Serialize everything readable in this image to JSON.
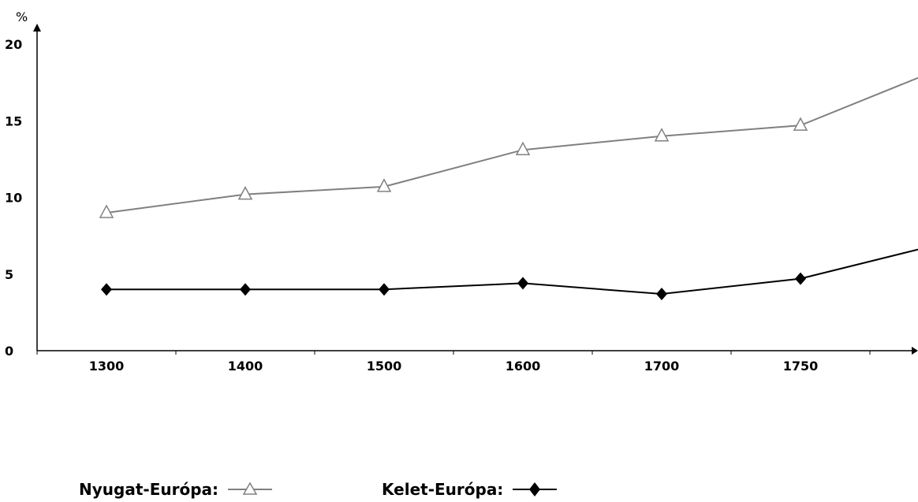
{
  "chart_data": {
    "type": "line",
    "title": "",
    "xlabel": "",
    "ylabel": "%",
    "categories": [
      "1300",
      "1400",
      "1500",
      "1600",
      "1700",
      "1750"
    ],
    "ylim": [
      0,
      20
    ],
    "yticks": [
      0,
      5,
      10,
      15,
      20
    ],
    "grid": false,
    "legend_position": "bottom",
    "series": [
      {
        "name": "Nyugat-Európa:",
        "values": [
          9.0,
          10.2,
          10.7,
          13.1,
          14.0,
          14.7
        ],
        "continues_past_last": 17.8,
        "marker": "open-triangle",
        "color": "#808080"
      },
      {
        "name": "Kelet-Európa:",
        "values": [
          4.0,
          4.0,
          4.0,
          4.4,
          3.7,
          4.7
        ],
        "continues_past_last": 6.6,
        "marker": "filled-diamond",
        "color": "#000000"
      }
    ]
  }
}
